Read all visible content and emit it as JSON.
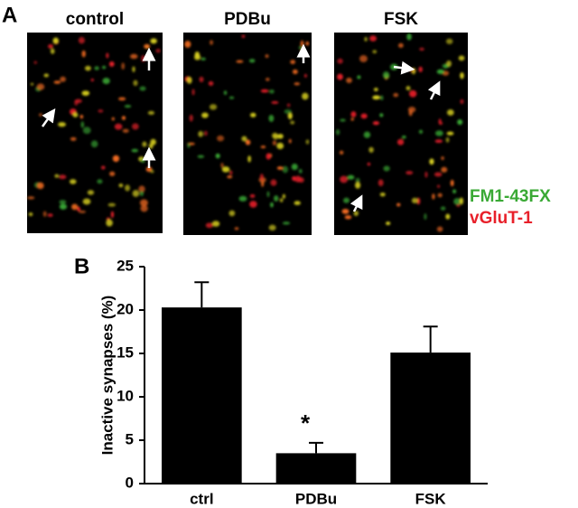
{
  "figure": {
    "panel_a": "A",
    "panel_b": "B",
    "image_titles": [
      "control",
      "PDBu",
      "FSK"
    ],
    "stain_labels": [
      {
        "text": "FM1-43FX",
        "color": "#3aa935"
      },
      {
        "text": "vGluT-1",
        "color": "#e8202a"
      }
    ]
  },
  "chart_data": {
    "type": "bar",
    "y_label": "Inactive synapses (%)",
    "categories": [
      "ctrl",
      "PDBu",
      "FSK"
    ],
    "values": [
      20.3,
      3.5,
      15.1
    ],
    "errors": [
      2.9,
      1.2,
      3.0
    ],
    "color": "#000000",
    "annotation": "*",
    "ylim": [
      0,
      25
    ],
    "yticks": [
      0,
      5,
      10,
      15,
      20,
      25
    ]
  }
}
